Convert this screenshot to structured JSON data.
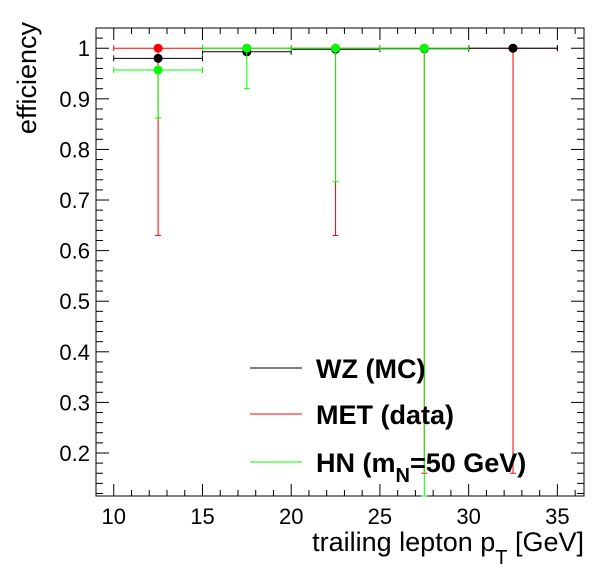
{
  "chart_data": {
    "type": "scatter",
    "xlabel": {
      "main": "trailing lepton p",
      "sub": "T",
      "unit": " [GeV]"
    },
    "ylabel": "efficiency",
    "xlim": [
      9,
      36.5
    ],
    "ylim": [
      0.115,
      1.04
    ],
    "x_ticks": [
      10,
      15,
      20,
      25,
      30,
      35
    ],
    "y_ticks": [
      0.2,
      0.3,
      0.4,
      0.5,
      0.6,
      0.7,
      0.8,
      0.9,
      1
    ],
    "y_tick_labels": [
      "0.2",
      "0.3",
      "0.4",
      "0.5",
      "0.6",
      "0.7",
      "0.8",
      "0.9",
      "1"
    ],
    "grid": false,
    "legend_position": "bottom-right",
    "series": [
      {
        "name": "WZ (MC)",
        "color": "#000000",
        "points": [
          {
            "x": 12.5,
            "xerr": 2.5,
            "y": 0.98,
            "ylo": 0.98,
            "yhi": 0.98
          },
          {
            "x": 17.5,
            "xerr": 2.5,
            "y": 0.993,
            "ylo": 0.993,
            "yhi": 0.993
          },
          {
            "x": 22.5,
            "xerr": 2.5,
            "y": 0.998,
            "ylo": 0.998,
            "yhi": 0.998
          },
          {
            "x": 27.5,
            "xerr": 2.5,
            "y": 0.999,
            "ylo": 0.999,
            "yhi": 0.999
          },
          {
            "x": 32.5,
            "xerr": 2.5,
            "y": 1.0,
            "ylo": 1.0,
            "yhi": 1.0
          }
        ]
      },
      {
        "name": "MET (data)",
        "color": "#ff0000",
        "points": [
          {
            "x": 12.5,
            "xerr": 2.5,
            "y": 1.0,
            "ylo": 0.63,
            "yhi": 1.0
          },
          {
            "x": 17.5,
            "xerr": 2.5,
            "y": 1.0,
            "ylo": 1.0,
            "yhi": 1.0
          },
          {
            "x": 22.5,
            "xerr": 2.5,
            "y": 1.0,
            "ylo": 0.63,
            "yhi": 1.0
          },
          {
            "x": 27.5,
            "xerr": 2.5,
            "y": 1.0,
            "ylo": 0.16,
            "yhi": 1.0
          },
          {
            "x": 32.5,
            "xerr": 2.5,
            "y": 1.0,
            "ylo": 0.16,
            "yhi": 1.0
          }
        ]
      },
      {
        "name": "HN (m_N=50 GeV)",
        "color": "#00ff00",
        "points": [
          {
            "x": 12.5,
            "xerr": 2.5,
            "y": 0.957,
            "ylo": 0.862,
            "yhi": 0.957
          },
          {
            "x": 17.5,
            "xerr": 2.5,
            "y": 1.0,
            "ylo": 0.92,
            "yhi": 1.0
          },
          {
            "x": 22.5,
            "xerr": 2.5,
            "y": 1.0,
            "ylo": 0.736,
            "yhi": 1.0
          },
          {
            "x": 27.5,
            "xerr": 2.5,
            "y": 1.0,
            "ylo": 0.115,
            "yhi": 1.0
          }
        ]
      }
    ],
    "legend": [
      {
        "main": "WZ (MC)",
        "sub": "",
        "tail": ""
      },
      {
        "main": "MET (data)",
        "sub": "",
        "tail": ""
      },
      {
        "main": "HN (m",
        "sub": "N",
        "tail": "=50 GeV)"
      }
    ]
  }
}
